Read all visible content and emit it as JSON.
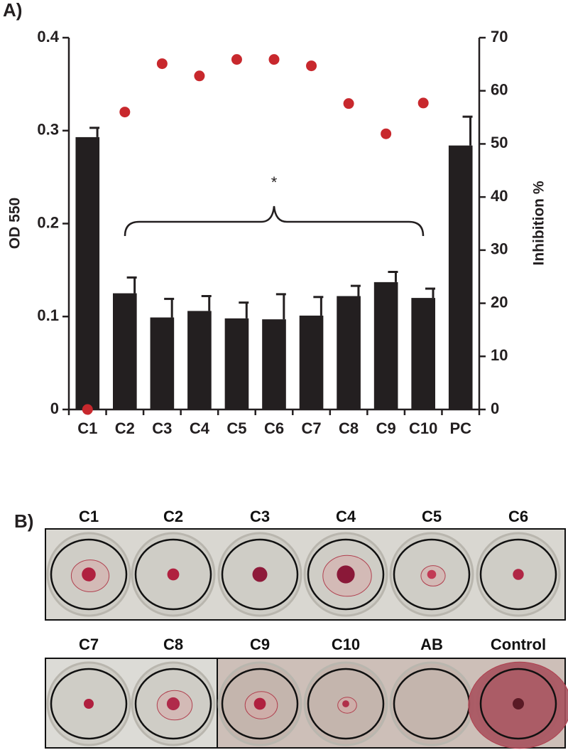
{
  "panel_labels": [
    "A)",
    "B)"
  ],
  "chart_data": {
    "type": "bar",
    "categories": [
      "C1",
      "C2",
      "C3",
      "C4",
      "C5",
      "C6",
      "C7",
      "C8",
      "C9",
      "C10",
      "PC"
    ],
    "ylabel": "OD 550",
    "y2label": "Inhibition %",
    "annotation": "*",
    "ylim": [
      0,
      0.4
    ],
    "yticks": [
      0,
      0.1,
      0.2,
      0.3,
      0.4
    ],
    "y2lim": [
      0,
      70
    ],
    "y2ticks": [
      0,
      10,
      20,
      30,
      40,
      50,
      60,
      70
    ],
    "series": [
      {
        "type": "bar",
        "color": "#231f20",
        "values": [
          0.293,
          0.125,
          0.099,
          0.106,
          0.098,
          0.097,
          0.101,
          0.122,
          0.137,
          0.12,
          0.284
        ],
        "errors": [
          0.01,
          0.017,
          0.02,
          0.016,
          0.017,
          0.027,
          0.02,
          0.011,
          0.011,
          0.01,
          0.031
        ]
      },
      {
        "type": "scatter",
        "color": "#c8282d",
        "axis": "y2",
        "values": [
          0,
          56.0,
          65.1,
          62.8,
          65.9,
          65.9,
          64.7,
          57.6,
          51.9,
          57.7,
          null
        ]
      }
    ]
  },
  "wells": {
    "labels": [
      "C1",
      "C2",
      "C3",
      "C4",
      "C5",
      "C6",
      "C7",
      "C8",
      "C9",
      "C10",
      "AB",
      "Control"
    ]
  }
}
